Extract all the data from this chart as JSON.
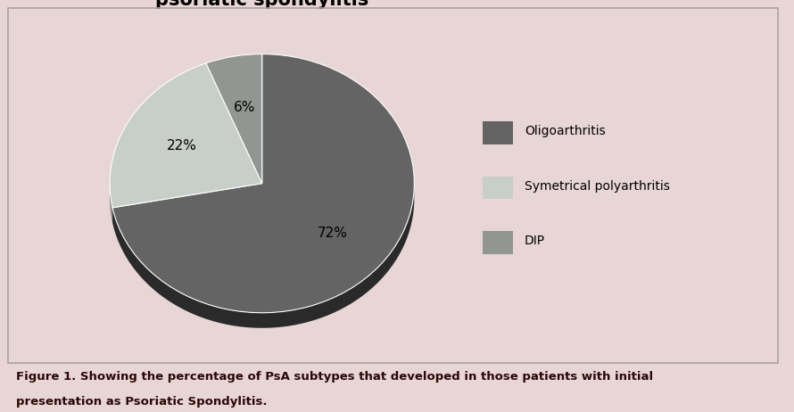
{
  "title": "% of peripheral PsA Subtypes in patients with\npsoriatic spondylitis",
  "slices": [
    72,
    22,
    6
  ],
  "labels": [
    "Oligoarthritis",
    "Symetrical polyarthritis",
    "DIP"
  ],
  "pct_labels": [
    "72%",
    "22%",
    "6%"
  ],
  "colors": [
    "#646464",
    "#c8cec8",
    "#929692"
  ],
  "shadow_colors": [
    "#2a2a2a",
    "#888888",
    "#555555"
  ],
  "background_color": "#e8d5d5",
  "caption_line1": "Figure 1. Showing the percentage of PsA subtypes that developed in those patients with initial",
  "caption_line2": "presentation as Psoriatic Spondylitis.",
  "title_fontsize": 15,
  "legend_fontsize": 10,
  "pct_fontsize": 11,
  "caption_fontsize": 9.5,
  "startangle": 90
}
